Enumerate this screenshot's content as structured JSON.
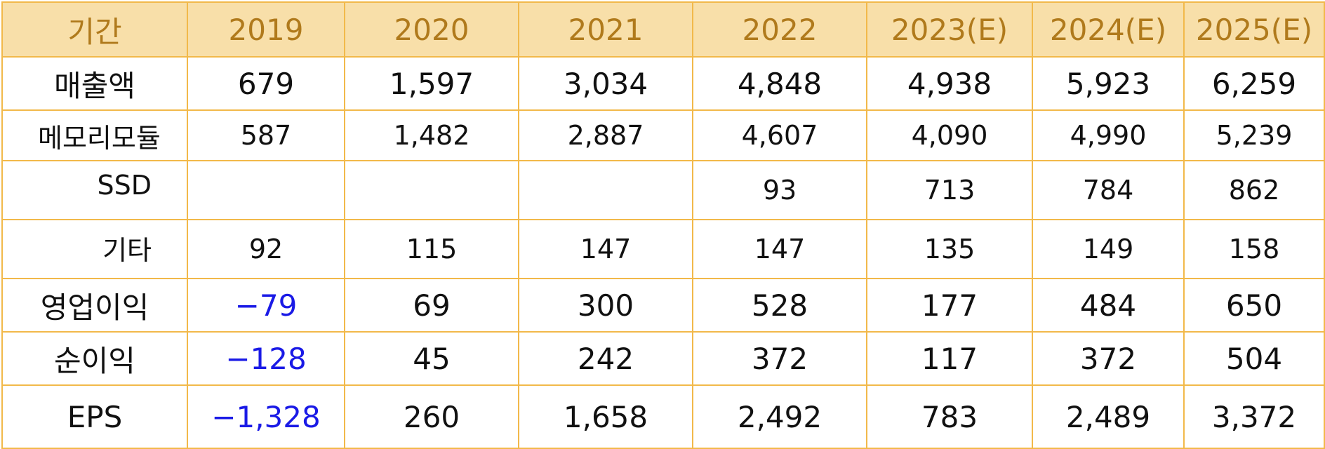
{
  "header": [
    "기간",
    "2019",
    "2020",
    "2021",
    "2022",
    "2023(E)",
    "2024(E)",
    "2025(E)"
  ],
  "rows": [
    {
      "label": "매출액",
      "values": [
        "679",
        "1,597",
        "3,034",
        "4,848",
        "4,938",
        "5,923",
        "6,259"
      ]
    },
    {
      "label": "메모리모듈",
      "values": [
        "587",
        "1,482",
        "2,887",
        "4,607",
        "4,090",
        "4,990",
        "5,239"
      ]
    },
    {
      "label": "SSD",
      "values": [
        "",
        "",
        "",
        "93",
        "713",
        "784",
        "862"
      ]
    },
    {
      "label": "기타",
      "values": [
        "92",
        "115",
        "147",
        "147",
        "135",
        "149",
        "158"
      ]
    },
    {
      "label": "영업이익",
      "values": [
        "−79",
        "69",
        "300",
        "528",
        "177",
        "484",
        "650"
      ]
    },
    {
      "label": "순이익",
      "values": [
        "−128",
        "45",
        "242",
        "372",
        "117",
        "372",
        "504"
      ]
    },
    {
      "label": "EPS",
      "values": [
        "−1,328",
        "260",
        "1,658",
        "2,492",
        "783",
        "2,489",
        "3,372"
      ]
    }
  ],
  "colors": {
    "header_bg": "#f8dfa9",
    "header_text": "#b07a1c",
    "border": "#f2b94a",
    "negative": "#1a1ae6"
  }
}
